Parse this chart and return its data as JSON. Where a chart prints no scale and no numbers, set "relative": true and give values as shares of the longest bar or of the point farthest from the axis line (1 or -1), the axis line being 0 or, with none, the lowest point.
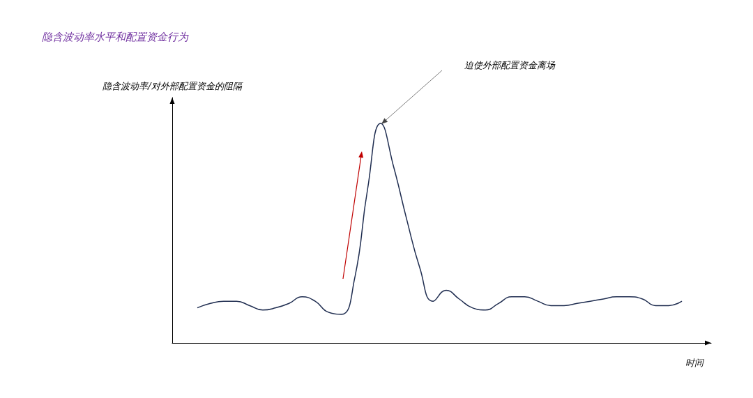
{
  "chart_data": {
    "type": "line",
    "title": "隐含波动率水平和配置资金行为",
    "ylabel": "隐含波动率/对外部配置资金的阻隔",
    "xlabel": "时间",
    "annotations": [
      "迫使外部配置资金离场"
    ],
    "relative": true,
    "grid": false,
    "marker": "none",
    "line_style": "solid",
    "categories": [
      null,
      null,
      null,
      null,
      null,
      null,
      null,
      null,
      null,
      null,
      null,
      null,
      null,
      null,
      null,
      null,
      null,
      null,
      null,
      null,
      null,
      null,
      null,
      null,
      null,
      null,
      null,
      null,
      null,
      null,
      null,
      null,
      null,
      null,
      null,
      null,
      null,
      null
    ],
    "series": [
      {
        "color": "#1f2d50",
        "values": [
          0.16,
          0.18,
          0.19,
          0.19,
          0.17,
          0.15,
          0.16,
          0.18,
          0.21,
          0.19,
          0.14,
          0.13,
          0.29,
          0.7,
          1,
          0.8,
          0.56,
          0.34,
          0.19,
          0.24,
          0.2,
          0.16,
          0.15,
          0.18,
          0.21,
          0.21,
          0.19,
          0.17,
          0.17,
          0.18,
          0.19,
          0.2,
          0.21,
          0.21,
          0.2,
          0.17,
          0.17,
          0.19
        ]
      }
    ]
  }
}
